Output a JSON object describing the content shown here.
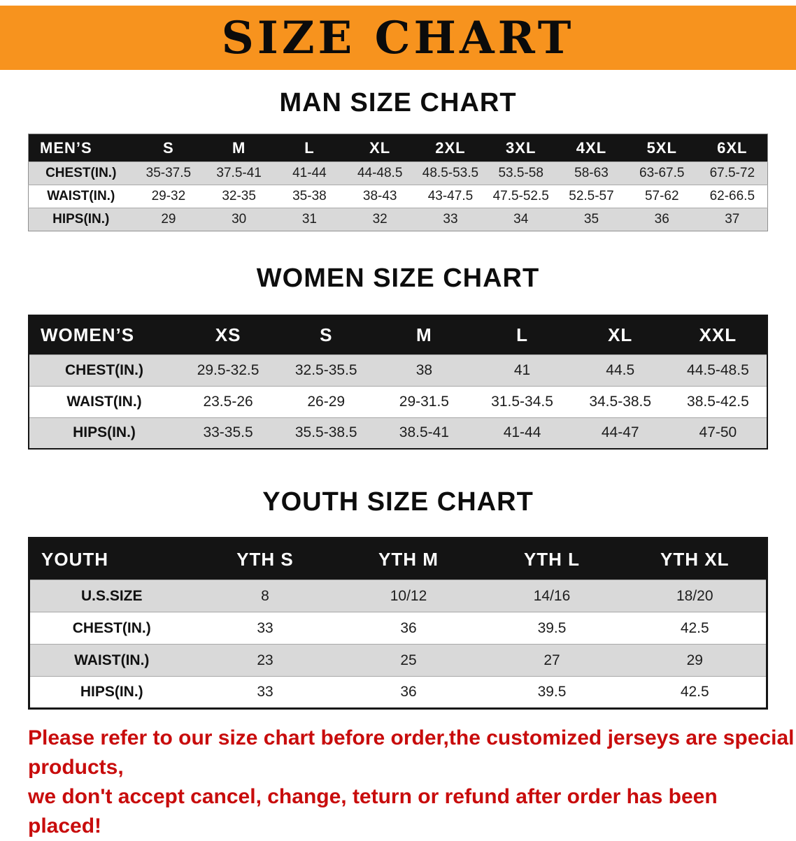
{
  "colors": {
    "banner_orange": "#F7931E",
    "header_black": "#141414",
    "row_gray": "#D9D9D9",
    "note_red": "#C80C0C"
  },
  "banner": {
    "title": "SIZE CHART"
  },
  "men_section": {
    "heading": "MAN SIZE CHART",
    "table": {
      "header": [
        "MEN’S",
        "S",
        "M",
        "L",
        "XL",
        "2XL",
        "3XL",
        "4XL",
        "5XL",
        "6XL"
      ],
      "rows": [
        [
          "CHEST(IN.)",
          "35-37.5",
          "37.5-41",
          "41-44",
          "44-48.5",
          "48.5-53.5",
          "53.5-58",
          "58-63",
          "63-67.5",
          "67.5-72"
        ],
        [
          "WAIST(IN.)",
          "29-32",
          "32-35",
          "35-38",
          "38-43",
          "43-47.5",
          "47.5-52.5",
          "52.5-57",
          "57-62",
          "62-66.5"
        ],
        [
          "HIPS(IN.)",
          "29",
          "30",
          "31",
          "32",
          "33",
          "34",
          "35",
          "36",
          "37"
        ]
      ]
    }
  },
  "women_section": {
    "heading": "WOMEN SIZE CHART",
    "table": {
      "header": [
        "WOMEN’S",
        "XS",
        "S",
        "M",
        "L",
        "XL",
        "XXL"
      ],
      "rows": [
        [
          "CHEST(IN.)",
          "29.5-32.5",
          "32.5-35.5",
          "38",
          "41",
          "44.5",
          "44.5-48.5"
        ],
        [
          "WAIST(IN.)",
          "23.5-26",
          "26-29",
          "29-31.5",
          "31.5-34.5",
          "34.5-38.5",
          "38.5-42.5"
        ],
        [
          "HIPS(IN.)",
          "33-35.5",
          "35.5-38.5",
          "38.5-41",
          "41-44",
          "44-47",
          "47-50"
        ]
      ]
    }
  },
  "youth_section": {
    "heading": "YOUTH SIZE CHART",
    "table": {
      "header": [
        "YOUTH",
        "YTH S",
        "YTH M",
        "YTH L",
        "YTH XL"
      ],
      "rows": [
        [
          "U.S.SIZE",
          "8",
          "10/12",
          "14/16",
          "18/20"
        ],
        [
          "CHEST(IN.)",
          "33",
          "36",
          "39.5",
          "42.5"
        ],
        [
          "WAIST(IN.)",
          "23",
          "25",
          "27",
          "29"
        ],
        [
          "HIPS(IN.)",
          "33",
          "36",
          "39.5",
          "42.5"
        ]
      ]
    }
  },
  "note": {
    "line1": "Please refer to our size chart before order,the customized jerseys are special products,",
    "line2": "we don't accept cancel, change, teturn or refund after order has been placed!"
  }
}
